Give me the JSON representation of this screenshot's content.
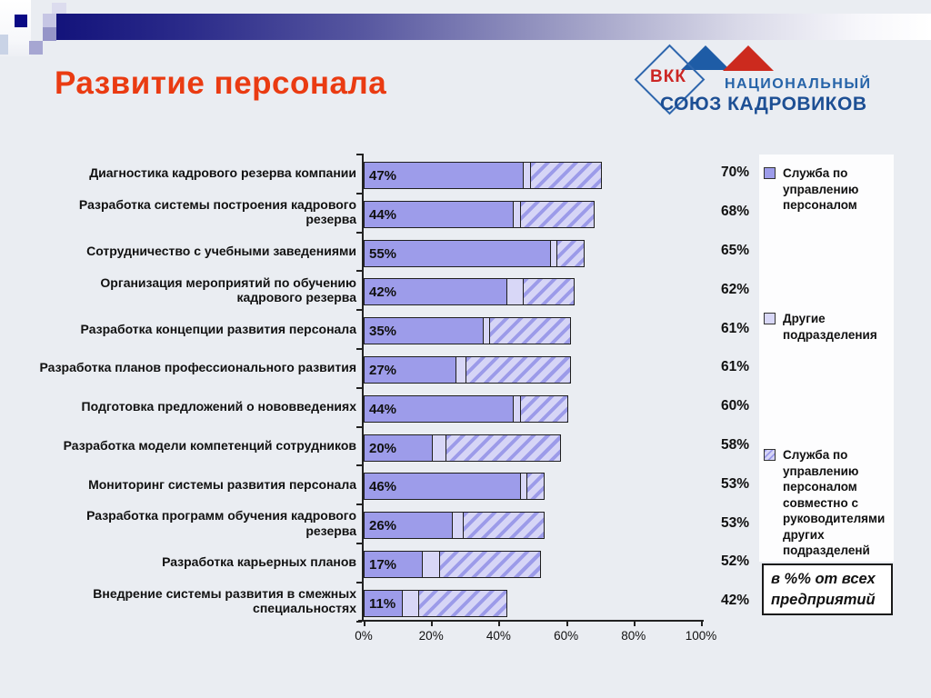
{
  "slide": {
    "title": "Развитие персонала",
    "logo": {
      "acronym": "ВКК",
      "line1": "НАЦИОНАЛЬНЫЙ",
      "line2": "СОЮЗ КАДРОВИКОВ"
    },
    "note": "в %% от всех предприятий"
  },
  "colors": {
    "title_red": "#ea3b12",
    "bar_solid": "#9d9cea",
    "bar_light": "#d8d7f7",
    "hatch_stripe": "#9c9be9",
    "hatch_bg": "#d6d5f6",
    "outline": "#1f1f1f",
    "logo_blue": "#1d4f94",
    "logo_red": "#cc2a1e",
    "banner_navy": "#13137b",
    "background": "#eaedf2"
  },
  "chart_data": {
    "type": "bar",
    "orientation": "horizontal",
    "title": "",
    "xlabel": "",
    "ylabel": "",
    "xlim": [
      0,
      100
    ],
    "grid": false,
    "legend_position": "right",
    "x_ticks": [
      "0%",
      "20%",
      "40%",
      "60%",
      "80%",
      "100%"
    ],
    "categories": [
      "Диагностика кадрового резерва компании",
      "Разработка системы построения кадрового резерва",
      "Сотрудничество с учебными заведениями",
      "Организация мероприятий по обучению кадрового резерва",
      "Разработка концепции развития персонала",
      "Разработка планов профессионального развития",
      "Подготовка предложений о нововведениях",
      "Разработка модели компетенций сотрудников",
      "Мониторинг системы развития персонала",
      "Разработка программ обучения кадрового резерва",
      "Разработка карьерных планов",
      "Внедрение системы развития в смежных специальностях"
    ],
    "series": [
      {
        "name": "Служба по управлению персоналом",
        "style": "solid-purple",
        "values": [
          47,
          44,
          55,
          42,
          35,
          27,
          44,
          20,
          46,
          26,
          17,
          11
        ]
      },
      {
        "name": "Другие подразделения",
        "style": "light-lavender",
        "values": [
          2,
          2,
          2,
          5,
          2,
          3,
          2,
          4,
          2,
          3,
          5,
          5
        ]
      },
      {
        "name": "Служба по управлению персоналом совместно с руководителями других подразделенй",
        "style": "hatched",
        "values": [
          21,
          22,
          8,
          15,
          24,
          31,
          14,
          34,
          5,
          24,
          30,
          26
        ]
      }
    ],
    "bar_value_labels": [
      "47%",
      "44%",
      "55%",
      "42%",
      "35%",
      "27%",
      "44%",
      "20%",
      "46%",
      "26%",
      "17%",
      "11%"
    ],
    "totals": [
      70,
      68,
      65,
      62,
      61,
      61,
      60,
      58,
      53,
      53,
      52,
      42
    ],
    "total_labels": [
      "70%",
      "68%",
      "65%",
      "62%",
      "61%",
      "61%",
      "60%",
      "58%",
      "53%",
      "53%",
      "52%",
      "42%"
    ]
  }
}
